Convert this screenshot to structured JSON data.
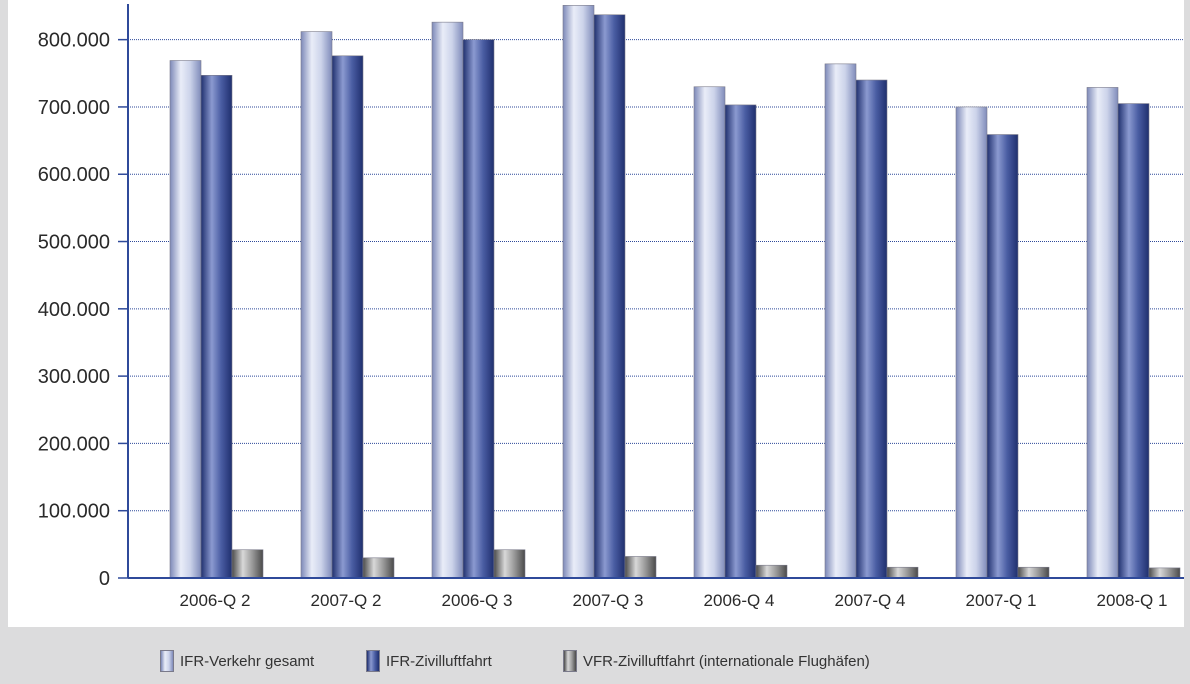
{
  "chart_data": {
    "type": "bar",
    "title": "",
    "xlabel": "",
    "ylabel": "",
    "categories": [
      "2006-Q 2",
      "2007-Q 2",
      "2006-Q 3",
      "2007-Q 3",
      "2006-Q 4",
      "2007-Q 4",
      "2007-Q 1",
      "2008-Q 1"
    ],
    "ylim": [
      0,
      850000
    ],
    "yticks": [
      0,
      100000,
      200000,
      300000,
      400000,
      500000,
      600000,
      700000,
      800000
    ],
    "ytick_labels": [
      "0",
      "100.000",
      "200.000",
      "300.000",
      "400.000",
      "500.000",
      "600.000",
      "700.000",
      "800.000"
    ],
    "grid": "horizontal dotted",
    "legend_position": "bottom",
    "series": [
      {
        "name": "IFR-Verkehr gesamt",
        "color": "#b4bedd",
        "values": [
          769000,
          812000,
          826000,
          851000,
          730000,
          764000,
          700000,
          729000
        ]
      },
      {
        "name": "IFR-Zivilluftfahrt",
        "color": "#3a4d8f",
        "values": [
          747000,
          776000,
          800000,
          837000,
          703000,
          740000,
          659000,
          705000
        ]
      },
      {
        "name": "VFR-Zivilluftfahrt (internationale Flughäfen)",
        "color": "#8a8a8a",
        "values": [
          42000,
          30000,
          42000,
          32000,
          19000,
          16000,
          16000,
          15000
        ]
      }
    ]
  }
}
